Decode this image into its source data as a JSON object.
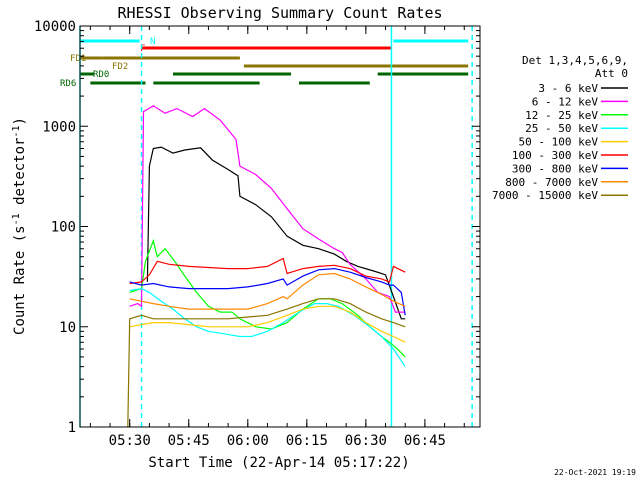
{
  "chart_data": {
    "type": "line",
    "title": "RHESSI Observing Summary Count Rates",
    "xlabel": "Start Time (22-Apr-14 05:17:22)",
    "ylabel": "Count Rate (s-1 detector-1)",
    "ylabel_parts": {
      "main": "Count Rate (s",
      "exp1": "-1",
      "mid": " detector",
      "exp2": "-1",
      "close": ")"
    },
    "yscale": "log",
    "xlim": [
      "05:17:22",
      "06:59:00"
    ],
    "ylim": [
      1,
      10000
    ],
    "x_ticks": [
      "05:30",
      "05:45",
      "06:00",
      "06:15",
      "06:30",
      "06:45"
    ],
    "y_ticks": [
      {
        "value": 1,
        "label": "1"
      },
      {
        "value": 10,
        "label": "10"
      },
      {
        "value": 100,
        "label": "100"
      },
      {
        "value": 1000,
        "label": "1000"
      },
      {
        "value": 10000,
        "label": "10000"
      }
    ],
    "legend": {
      "header": [
        "Det 1,3,4,5,6,9,",
        "Att 0"
      ],
      "placement": "right",
      "entries": [
        {
          "label": "3 - 6 keV",
          "color": "#000000"
        },
        {
          "label": "6 - 12 keV",
          "color": "#ff00ff"
        },
        {
          "label": "12 - 25 keV",
          "color": "#00ff00"
        },
        {
          "label": "25 - 50 keV",
          "color": "#00ffff"
        },
        {
          "label": "50 - 100 keV",
          "color": "#ffcc00"
        },
        {
          "label": "100 - 300 keV",
          "color": "#ff0000"
        },
        {
          "label": "300 - 800 keV",
          "color": "#0000ff"
        },
        {
          "label": "800 - 7000 keV",
          "color": "#ff8800"
        },
        {
          "label": "7000 - 15000 keV",
          "color": "#8b7500"
        }
      ]
    },
    "flag_bars": [
      {
        "label": "N",
        "color": "#00ffff",
        "segments": [
          [
            "05:17:22",
            "05:32:30"
          ],
          [
            "06:37:00",
            "06:56:00"
          ]
        ]
      },
      {
        "label": "F",
        "color": "#ff0000",
        "segments": [
          [
            "05:33:00",
            "06:36:30"
          ]
        ]
      },
      {
        "label": "FD1",
        "color": "#8b7500",
        "segments": [
          [
            "05:17:22",
            "05:23:00"
          ],
          [
            "05:23:00",
            "05:58:00"
          ]
        ]
      },
      {
        "label": "FD2",
        "color": "#8b7500",
        "segments": [
          [
            "05:59:00",
            "06:56:00"
          ]
        ]
      },
      {
        "label": "RD0",
        "color": "#006400",
        "segments": [
          [
            "05:17:22",
            "05:21:00"
          ],
          [
            "05:41:00",
            "06:11:00"
          ],
          [
            "06:33:00",
            "06:56:00"
          ]
        ]
      },
      {
        "label": "RD6",
        "color": "#006400",
        "segments": [
          [
            "05:20:00",
            "05:34:00"
          ],
          [
            "05:36:00",
            "06:03:00"
          ],
          [
            "06:13:00",
            "06:31:00"
          ]
        ]
      }
    ],
    "vlines": [
      {
        "time": "05:17:22",
        "color": "#00ffff",
        "style": "solid"
      },
      {
        "time": "05:33:00",
        "color": "#00ffff",
        "style": "dashed"
      },
      {
        "time": "06:36:30",
        "color": "#00ffff",
        "style": "solid"
      },
      {
        "time": "06:57:00",
        "color": "#00ffff",
        "style": "dashed"
      }
    ],
    "series": [
      {
        "name": "3 - 6 keV",
        "color": "#000000",
        "points": [
          [
            "05:34:30",
            28
          ],
          [
            "05:35:00",
            400
          ],
          [
            "05:36:00",
            600
          ],
          [
            "05:38:00",
            620
          ],
          [
            "05:41:00",
            540
          ],
          [
            "05:44:00",
            580
          ],
          [
            "05:48:00",
            610
          ],
          [
            "05:51:00",
            460
          ],
          [
            "05:55:00",
            370
          ],
          [
            "05:57:30",
            320
          ],
          [
            "05:58:00",
            200
          ],
          [
            "06:02:00",
            165
          ],
          [
            "06:06:00",
            125
          ],
          [
            "06:10:00",
            80
          ],
          [
            "06:14:00",
            65
          ],
          [
            "06:18:00",
            60
          ],
          [
            "06:22:00",
            53
          ],
          [
            "06:25:00",
            45
          ],
          [
            "06:28:00",
            40
          ],
          [
            "06:32:00",
            36
          ],
          [
            "06:35:00",
            33
          ],
          [
            "06:37:00",
            20
          ],
          [
            "06:39:00",
            12
          ],
          [
            "06:40:00",
            12
          ]
        ]
      },
      {
        "name": "6 - 12 keV",
        "color": "#ff00ff",
        "points": [
          [
            "05:30:00",
            16
          ],
          [
            "05:32:00",
            17
          ],
          [
            "05:33:00",
            16
          ],
          [
            "05:33:30",
            1400
          ],
          [
            "05:36:00",
            1600
          ],
          [
            "05:39:00",
            1350
          ],
          [
            "05:42:00",
            1500
          ],
          [
            "05:46:00",
            1250
          ],
          [
            "05:49:00",
            1500
          ],
          [
            "05:53:00",
            1150
          ],
          [
            "05:57:00",
            740
          ],
          [
            "05:58:00",
            400
          ],
          [
            "06:02:00",
            330
          ],
          [
            "06:06:00",
            240
          ],
          [
            "06:10:00",
            150
          ],
          [
            "06:14:00",
            95
          ],
          [
            "06:18:00",
            75
          ],
          [
            "06:22:00",
            60
          ],
          [
            "06:24:00",
            55
          ],
          [
            "06:26:00",
            42
          ],
          [
            "06:30:00",
            30
          ],
          [
            "06:33:00",
            22
          ],
          [
            "06:36:00",
            20
          ],
          [
            "06:37:30",
            14
          ],
          [
            "06:39:00",
            14
          ],
          [
            "06:40:00",
            14
          ]
        ]
      },
      {
        "name": "12 - 25 keV",
        "color": "#00ff00",
        "points": [
          [
            "05:30:00",
            22
          ],
          [
            "05:33:00",
            24
          ],
          [
            "05:34:00",
            45
          ],
          [
            "05:36:00",
            72
          ],
          [
            "05:37:00",
            50
          ],
          [
            "05:39:00",
            60
          ],
          [
            "05:42:00",
            42
          ],
          [
            "05:44:00",
            32
          ],
          [
            "05:47:00",
            22
          ],
          [
            "05:50:00",
            16
          ],
          [
            "05:53:00",
            14
          ],
          [
            "05:56:00",
            14
          ],
          [
            "05:58:00",
            12
          ],
          [
            "06:02:00",
            10
          ],
          [
            "06:06:00",
            9.5
          ],
          [
            "06:10:00",
            11
          ],
          [
            "06:14:00",
            15
          ],
          [
            "06:18:00",
            19
          ],
          [
            "06:21:00",
            19
          ],
          [
            "06:24:00",
            17
          ],
          [
            "06:28:00",
            13
          ],
          [
            "06:31:00",
            10
          ],
          [
            "06:34:00",
            8
          ],
          [
            "06:36:00",
            7
          ],
          [
            "06:38:00",
            6
          ],
          [
            "06:40:00",
            5
          ]
        ]
      },
      {
        "name": "25 - 50 keV",
        "color": "#00ffff",
        "points": [
          [
            "05:30:00",
            23
          ],
          [
            "05:33:00",
            24
          ],
          [
            "05:35:00",
            22
          ],
          [
            "05:38:00",
            18
          ],
          [
            "05:41:00",
            15
          ],
          [
            "05:44:00",
            12
          ],
          [
            "05:47:00",
            10
          ],
          [
            "05:50:00",
            9
          ],
          [
            "05:54:00",
            8.5
          ],
          [
            "05:58:00",
            8
          ],
          [
            "06:01:00",
            8
          ],
          [
            "06:05:00",
            9
          ],
          [
            "06:09:00",
            11
          ],
          [
            "06:13:00",
            14
          ],
          [
            "06:17:00",
            17
          ],
          [
            "06:20:00",
            17
          ],
          [
            "06:23:00",
            16
          ],
          [
            "06:27:00",
            13
          ],
          [
            "06:31:00",
            10
          ],
          [
            "06:34:00",
            8
          ],
          [
            "06:37:00",
            6
          ],
          [
            "06:40:00",
            4
          ]
        ]
      },
      {
        "name": "50 - 100 keV",
        "color": "#ffcc00",
        "points": [
          [
            "05:30:00",
            10
          ],
          [
            "05:33:00",
            10.5
          ],
          [
            "05:36:00",
            11
          ],
          [
            "05:40:00",
            11
          ],
          [
            "05:45:00",
            10.5
          ],
          [
            "05:50:00",
            10
          ],
          [
            "05:55:00",
            10
          ],
          [
            "06:00:00",
            10
          ],
          [
            "06:05:00",
            11
          ],
          [
            "06:10:00",
            13
          ],
          [
            "06:14:00",
            15
          ],
          [
            "06:18:00",
            16
          ],
          [
            "06:22:00",
            16
          ],
          [
            "06:26:00",
            14
          ],
          [
            "06:30:00",
            11
          ],
          [
            "06:34:00",
            9
          ],
          [
            "06:37:00",
            8
          ],
          [
            "06:40:00",
            7
          ]
        ]
      },
      {
        "name": "100 - 300 keV",
        "color": "#ff0000",
        "points": [
          [
            "05:30:00",
            27
          ],
          [
            "05:33:00",
            28
          ],
          [
            "05:35:00",
            33
          ],
          [
            "05:37:00",
            45
          ],
          [
            "05:40:00",
            42
          ],
          [
            "05:45:00",
            40
          ],
          [
            "05:50:00",
            39
          ],
          [
            "05:55:00",
            38
          ],
          [
            "06:00:00",
            38
          ],
          [
            "06:05:00",
            40
          ],
          [
            "06:09:00",
            48
          ],
          [
            "06:10:00",
            34
          ],
          [
            "06:14:00",
            38
          ],
          [
            "06:18:00",
            40
          ],
          [
            "06:22:00",
            41
          ],
          [
            "06:26:00",
            38
          ],
          [
            "06:30:00",
            32
          ],
          [
            "06:34:00",
            30
          ],
          [
            "06:36:00",
            28
          ],
          [
            "06:37:00",
            40
          ],
          [
            "06:40:00",
            35
          ]
        ]
      },
      {
        "name": "300 - 800 keV",
        "color": "#0000ff",
        "points": [
          [
            "05:30:00",
            28
          ],
          [
            "05:33:00",
            26
          ],
          [
            "05:36:00",
            27
          ],
          [
            "05:40:00",
            25
          ],
          [
            "05:45:00",
            24
          ],
          [
            "05:50:00",
            24
          ],
          [
            "05:55:00",
            24
          ],
          [
            "06:00:00",
            25
          ],
          [
            "06:05:00",
            27
          ],
          [
            "06:09:00",
            30
          ],
          [
            "06:10:00",
            26
          ],
          [
            "06:14:00",
            32
          ],
          [
            "06:18:00",
            37
          ],
          [
            "06:22:00",
            38
          ],
          [
            "06:26:00",
            35
          ],
          [
            "06:30:00",
            31
          ],
          [
            "06:34:00",
            28
          ],
          [
            "06:36:00",
            26
          ],
          [
            "06:37:00",
            26
          ],
          [
            "06:39:00",
            22
          ],
          [
            "06:40:00",
            13
          ]
        ]
      },
      {
        "name": "800 - 7000 keV",
        "color": "#ff8800",
        "points": [
          [
            "05:30:00",
            19
          ],
          [
            "05:33:00",
            18
          ],
          [
            "05:36:00",
            17
          ],
          [
            "05:40:00",
            16
          ],
          [
            "05:45:00",
            15
          ],
          [
            "05:50:00",
            15
          ],
          [
            "05:55:00",
            15
          ],
          [
            "06:00:00",
            15
          ],
          [
            "06:05:00",
            17
          ],
          [
            "06:09:00",
            20
          ],
          [
            "06:10:00",
            19
          ],
          [
            "06:14:00",
            26
          ],
          [
            "06:18:00",
            33
          ],
          [
            "06:22:00",
            34
          ],
          [
            "06:26:00",
            30
          ],
          [
            "06:30:00",
            25
          ],
          [
            "06:34:00",
            21
          ],
          [
            "06:37:00",
            18
          ],
          [
            "06:40:00",
            16
          ]
        ]
      },
      {
        "name": "7000 - 15000 keV",
        "color": "#8b7500",
        "points": [
          [
            "05:29:30",
            1
          ],
          [
            "05:30:00",
            12
          ],
          [
            "05:33:00",
            13
          ],
          [
            "05:36:00",
            12
          ],
          [
            "05:40:00",
            12
          ],
          [
            "05:45:00",
            12
          ],
          [
            "05:50:00",
            12
          ],
          [
            "05:55:00",
            12
          ],
          [
            "06:00:00",
            12.5
          ],
          [
            "06:05:00",
            13
          ],
          [
            "06:10:00",
            15
          ],
          [
            "06:14:00",
            17
          ],
          [
            "06:18:00",
            19
          ],
          [
            "06:22:00",
            19
          ],
          [
            "06:26:00",
            17
          ],
          [
            "06:30:00",
            14
          ],
          [
            "06:34:00",
            12
          ],
          [
            "06:37:00",
            11
          ],
          [
            "06:40:00",
            10
          ]
        ]
      }
    ]
  },
  "footer": {
    "date_stamp": "22-Oct-2021 19:19"
  }
}
